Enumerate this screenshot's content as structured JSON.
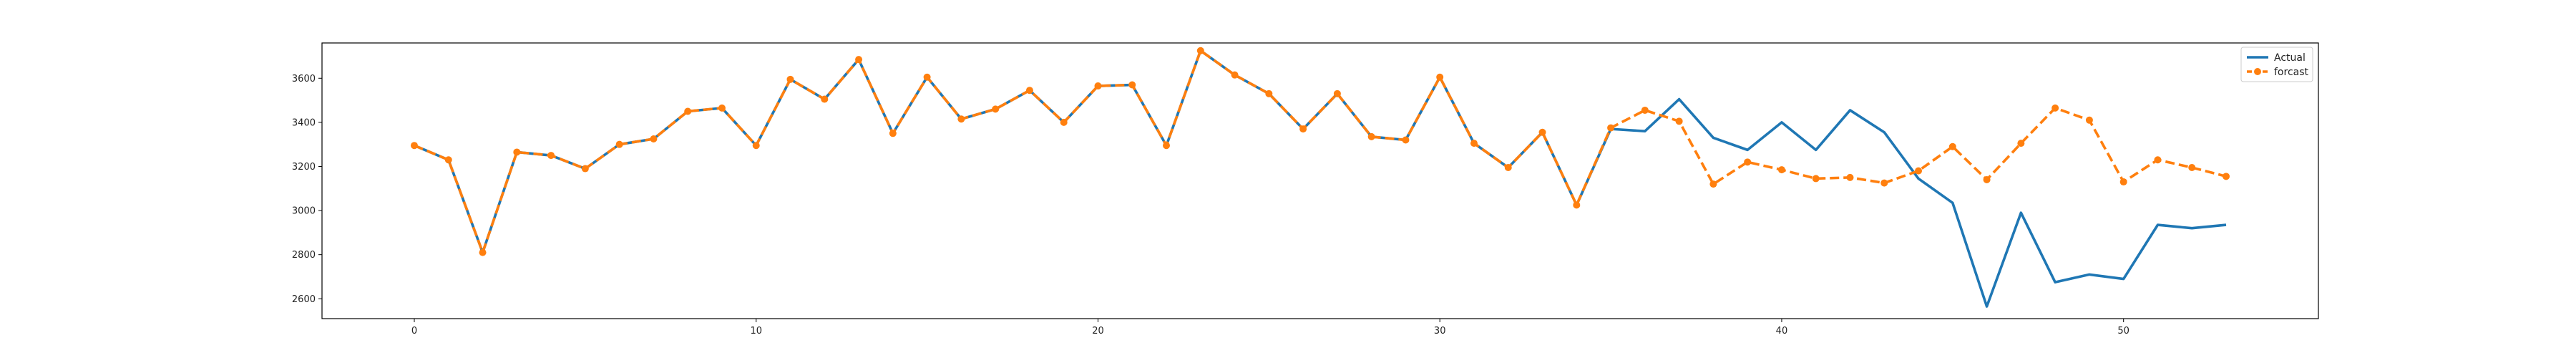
{
  "chart_data": {
    "type": "line",
    "title": "",
    "xlabel": "",
    "ylabel": "",
    "xlim": [
      -2.7,
      55.7
    ],
    "ylim": [
      2510,
      3760
    ],
    "x_ticks": [
      0,
      10,
      20,
      30,
      40,
      50
    ],
    "y_ticks": [
      2600,
      2800,
      3000,
      3200,
      3400,
      3600
    ],
    "grid": false,
    "legend_position": "top-right",
    "series": [
      {
        "name": "Actual",
        "color": "#1f77b4",
        "style": "solid",
        "x": [
          0,
          1,
          2,
          3,
          4,
          5,
          6,
          7,
          8,
          9,
          10,
          11,
          12,
          13,
          14,
          15,
          16,
          17,
          18,
          19,
          20,
          21,
          22,
          23,
          24,
          25,
          26,
          27,
          28,
          29,
          30,
          31,
          32,
          33,
          34,
          35,
          36,
          37,
          38,
          39,
          40,
          41,
          42,
          43,
          44,
          45,
          46,
          47,
          48,
          49,
          50,
          51,
          52,
          53
        ],
        "values": [
          3295,
          3230,
          2810,
          3265,
          3250,
          3190,
          3300,
          3325,
          3450,
          3465,
          3295,
          3595,
          3505,
          3685,
          3350,
          3605,
          3415,
          3460,
          3545,
          3400,
          3565,
          3570,
          3295,
          3725,
          3615,
          3530,
          3370,
          3530,
          3335,
          3320,
          3605,
          3305,
          3195,
          3355,
          3025,
          3370,
          3360,
          3505,
          3330,
          3275,
          3400,
          3275,
          3455,
          3355,
          3145,
          3035,
          2565,
          2990,
          2675,
          2710,
          2690,
          2935,
          2920,
          2935
        ]
      },
      {
        "name": "forcast",
        "color": "#ff7f0e",
        "style": "dashed",
        "marker": "circle",
        "x": [
          0,
          1,
          2,
          3,
          4,
          5,
          6,
          7,
          8,
          9,
          10,
          11,
          12,
          13,
          14,
          15,
          16,
          17,
          18,
          19,
          20,
          21,
          22,
          23,
          24,
          25,
          26,
          27,
          28,
          29,
          30,
          31,
          32,
          33,
          34,
          35,
          36,
          37,
          38,
          39,
          40,
          41,
          42,
          43,
          44,
          45,
          46,
          47,
          48,
          49,
          50,
          51,
          52,
          53
        ],
        "values": [
          3295,
          3230,
          2810,
          3265,
          3250,
          3190,
          3300,
          3325,
          3450,
          3465,
          3295,
          3595,
          3505,
          3685,
          3350,
          3605,
          3415,
          3460,
          3545,
          3400,
          3565,
          3570,
          3295,
          3725,
          3615,
          3530,
          3370,
          3530,
          3335,
          3320,
          3605,
          3305,
          3195,
          3355,
          3025,
          3375,
          3455,
          3405,
          3120,
          3220,
          3185,
          3145,
          3150,
          3125,
          3180,
          3290,
          3140,
          3305,
          3465,
          3410,
          3130,
          3230,
          3195,
          3155
        ]
      }
    ]
  }
}
